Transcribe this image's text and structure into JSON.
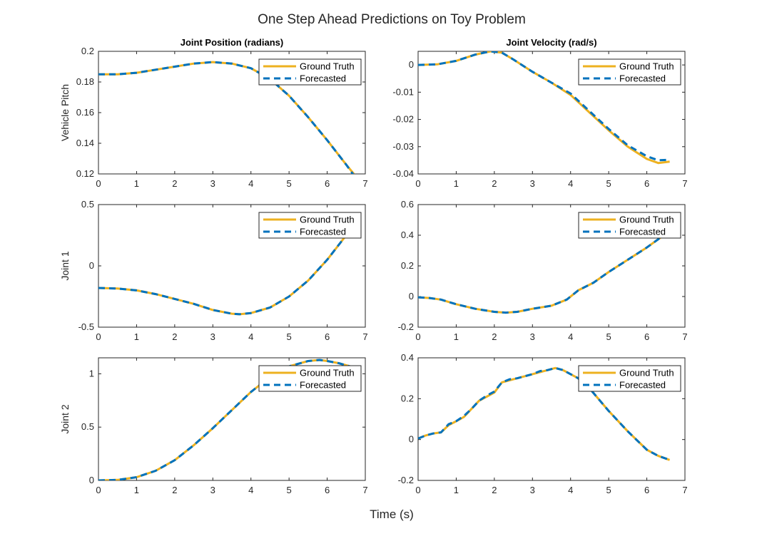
{
  "figure": {
    "title": "One Step Ahead Predictions on Toy Problem",
    "xlabel": "Time (s)"
  },
  "colors": {
    "ground_truth": "#EDB120",
    "forecasted": "#0072BD",
    "axes": "#262626",
    "background": "#FFFFFF"
  },
  "legend": {
    "placement": "top-right",
    "entries": [
      "Ground Truth",
      "Forecasted"
    ]
  },
  "chart_data": [
    {
      "type": "line",
      "row": 0,
      "col": 0,
      "title": "Joint Position (radians)",
      "ylabel": "Vehicle Pitch",
      "xlabel": "",
      "xlim": [
        0,
        7
      ],
      "ylim": [
        0.12,
        0.2
      ],
      "xticks": [
        0,
        1,
        2,
        3,
        4,
        5,
        6,
        7
      ],
      "yticks": [
        0.12,
        0.14,
        0.16,
        0.18,
        0.2
      ],
      "ytick_labels": [
        "0.12",
        "0.14",
        "0.16",
        "0.18",
        "0.2"
      ],
      "series": [
        {
          "name": "Ground Truth",
          "x": [
            0,
            0.5,
            1,
            1.5,
            2,
            2.5,
            3,
            3.5,
            4,
            4.5,
            5,
            5.5,
            6,
            6.5,
            6.7
          ],
          "y": [
            0.185,
            0.185,
            0.186,
            0.188,
            0.19,
            0.192,
            0.193,
            0.192,
            0.189,
            0.182,
            0.171,
            0.157,
            0.142,
            0.126,
            0.12
          ]
        },
        {
          "name": "Forecasted",
          "x": [
            0,
            0.5,
            1,
            1.5,
            2,
            2.5,
            3,
            3.5,
            4,
            4.5,
            5,
            5.5,
            6,
            6.5,
            6.7
          ],
          "y": [
            0.185,
            0.185,
            0.186,
            0.188,
            0.19,
            0.192,
            0.193,
            0.192,
            0.189,
            0.182,
            0.171,
            0.157,
            0.142,
            0.126,
            0.119
          ]
        }
      ]
    },
    {
      "type": "line",
      "row": 0,
      "col": 1,
      "title": "Joint Velocity (rad/s)",
      "ylabel": "",
      "xlabel": "",
      "xlim": [
        0,
        7
      ],
      "ylim": [
        -0.04,
        0.005
      ],
      "xticks": [
        0,
        1,
        2,
        3,
        4,
        5,
        6,
        7
      ],
      "yticks": [
        -0.04,
        -0.03,
        -0.02,
        -0.01,
        0
      ],
      "ytick_labels": [
        "-0.04",
        "-0.03",
        "-0.02",
        "-0.01",
        "0"
      ],
      "series": [
        {
          "name": "Ground Truth",
          "x": [
            0,
            0.5,
            1,
            1.5,
            1.9,
            2.2,
            2.5,
            3,
            3.5,
            4,
            4.5,
            5,
            5.5,
            6,
            6.3,
            6.6
          ],
          "y": [
            0,
            0.0002,
            0.0015,
            0.0038,
            0.005,
            0.0045,
            0.002,
            -0.0025,
            -0.0065,
            -0.011,
            -0.0175,
            -0.024,
            -0.03,
            -0.0345,
            -0.036,
            -0.0355
          ]
        },
        {
          "name": "Forecasted",
          "x": [
            0,
            0.5,
            1,
            1.5,
            1.9,
            2.2,
            2.5,
            3,
            3.5,
            4,
            4.5,
            5,
            5.5,
            6,
            6.3,
            6.6
          ],
          "y": [
            0,
            0.0002,
            0.0015,
            0.0038,
            0.005,
            0.0045,
            0.002,
            -0.0025,
            -0.0065,
            -0.0105,
            -0.017,
            -0.0235,
            -0.0295,
            -0.0335,
            -0.035,
            -0.0348
          ]
        }
      ]
    },
    {
      "type": "line",
      "row": 1,
      "col": 0,
      "title": "",
      "ylabel": "Joint 1",
      "xlabel": "",
      "xlim": [
        0,
        7
      ],
      "ylim": [
        -0.5,
        0.5
      ],
      "xticks": [
        0,
        1,
        2,
        3,
        4,
        5,
        6,
        7
      ],
      "yticks": [
        -0.5,
        0,
        0.5
      ],
      "ytick_labels": [
        "-0.5",
        "0",
        "0.5"
      ],
      "series": [
        {
          "name": "Ground Truth",
          "x": [
            0,
            0.5,
            1,
            1.5,
            2,
            2.5,
            3,
            3.5,
            3.7,
            4,
            4.5,
            5,
            5.5,
            6,
            6.5,
            6.7
          ],
          "y": [
            -0.18,
            -0.185,
            -0.2,
            -0.23,
            -0.27,
            -0.31,
            -0.36,
            -0.39,
            -0.395,
            -0.385,
            -0.34,
            -0.25,
            -0.12,
            0.05,
            0.25,
            0.32
          ]
        },
        {
          "name": "Forecasted",
          "x": [
            0,
            0.5,
            1,
            1.5,
            2,
            2.5,
            3,
            3.5,
            3.7,
            4,
            4.5,
            5,
            5.5,
            6,
            6.5,
            6.7
          ],
          "y": [
            -0.18,
            -0.185,
            -0.2,
            -0.23,
            -0.27,
            -0.31,
            -0.36,
            -0.39,
            -0.395,
            -0.385,
            -0.34,
            -0.25,
            -0.12,
            0.05,
            0.25,
            0.32
          ]
        }
      ]
    },
    {
      "type": "line",
      "row": 1,
      "col": 1,
      "title": "",
      "ylabel": "",
      "xlabel": "",
      "xlim": [
        0,
        7
      ],
      "ylim": [
        -0.2,
        0.6
      ],
      "xticks": [
        0,
        1,
        2,
        3,
        4,
        5,
        6,
        7
      ],
      "yticks": [
        -0.2,
        0,
        0.2,
        0.4,
        0.6
      ],
      "ytick_labels": [
        "-0.2",
        "0",
        "0.2",
        "0.4",
        "0.6"
      ],
      "series": [
        {
          "name": "Ground Truth",
          "x": [
            0,
            0.3,
            0.6,
            1,
            1.5,
            2,
            2.3,
            2.6,
            3,
            3.5,
            3.9,
            4.2,
            4.6,
            5,
            5.5,
            6,
            6.5,
            6.7
          ],
          "y": [
            -0.005,
            -0.01,
            -0.02,
            -0.05,
            -0.08,
            -0.1,
            -0.105,
            -0.1,
            -0.08,
            -0.06,
            -0.02,
            0.04,
            0.09,
            0.16,
            0.24,
            0.32,
            0.41,
            0.45
          ]
        },
        {
          "name": "Forecasted",
          "x": [
            0,
            0.3,
            0.6,
            1,
            1.5,
            2,
            2.3,
            2.6,
            3,
            3.5,
            3.9,
            4.2,
            4.6,
            5,
            5.5,
            6,
            6.5,
            6.7
          ],
          "y": [
            -0.005,
            -0.01,
            -0.02,
            -0.05,
            -0.08,
            -0.1,
            -0.105,
            -0.1,
            -0.08,
            -0.06,
            -0.02,
            0.04,
            0.09,
            0.16,
            0.24,
            0.32,
            0.41,
            0.45
          ]
        }
      ]
    },
    {
      "type": "line",
      "row": 2,
      "col": 0,
      "title": "",
      "ylabel": "Joint 2",
      "xlabel": "",
      "xlim": [
        0,
        7
      ],
      "ylim": [
        0,
        1.15
      ],
      "xticks": [
        0,
        1,
        2,
        3,
        4,
        5,
        6,
        7
      ],
      "yticks": [
        0,
        0.5,
        1
      ],
      "ytick_labels": [
        "0",
        "0.5",
        "1"
      ],
      "series": [
        {
          "name": "Ground Truth",
          "x": [
            0,
            0.5,
            1,
            1.5,
            2,
            2.5,
            3,
            3.5,
            4,
            4.5,
            5,
            5.5,
            5.8,
            6,
            6.3,
            6.6
          ],
          "y": [
            0,
            0.005,
            0.03,
            0.09,
            0.19,
            0.33,
            0.49,
            0.66,
            0.83,
            0.97,
            1.07,
            1.12,
            1.13,
            1.12,
            1.1,
            1.07
          ]
        },
        {
          "name": "Forecasted",
          "x": [
            0,
            0.5,
            1,
            1.5,
            2,
            2.5,
            3,
            3.5,
            4,
            4.5,
            5,
            5.5,
            5.8,
            6,
            6.3,
            6.6
          ],
          "y": [
            0,
            0.005,
            0.03,
            0.09,
            0.19,
            0.33,
            0.49,
            0.66,
            0.83,
            0.97,
            1.07,
            1.12,
            1.13,
            1.12,
            1.1,
            1.07
          ]
        }
      ]
    },
    {
      "type": "line",
      "row": 2,
      "col": 1,
      "title": "",
      "ylabel": "",
      "xlabel": "",
      "xlim": [
        0,
        7
      ],
      "ylim": [
        -0.2,
        0.4
      ],
      "xticks": [
        0,
        1,
        2,
        3,
        4,
        5,
        6,
        7
      ],
      "yticks": [
        -0.2,
        0,
        0.2,
        0.4
      ],
      "ytick_labels": [
        "-0.2",
        "0",
        "0.2",
        "0.4"
      ],
      "series": [
        {
          "name": "Ground Truth",
          "x": [
            0,
            0.2,
            0.4,
            0.6,
            0.8,
            1,
            1.2,
            1.4,
            1.6,
            1.8,
            2,
            2.2,
            2.4,
            2.6,
            2.8,
            3,
            3.2,
            3.4,
            3.6,
            3.8,
            4,
            4.2,
            4.5,
            5,
            5.5,
            6,
            6.3,
            6.6
          ],
          "y": [
            0.005,
            0.02,
            0.03,
            0.035,
            0.07,
            0.09,
            0.11,
            0.15,
            0.19,
            0.21,
            0.23,
            0.28,
            0.29,
            0.3,
            0.31,
            0.32,
            0.33,
            0.34,
            0.35,
            0.34,
            0.32,
            0.3,
            0.25,
            0.14,
            0.04,
            -0.05,
            -0.08,
            -0.1
          ]
        },
        {
          "name": "Forecasted",
          "x": [
            0,
            0.2,
            0.4,
            0.6,
            0.8,
            1,
            1.2,
            1.4,
            1.6,
            1.8,
            2,
            2.2,
            2.4,
            2.6,
            2.8,
            3,
            3.2,
            3.4,
            3.6,
            3.8,
            4,
            4.2,
            4.5,
            5,
            5.5,
            6,
            6.3,
            6.6
          ],
          "y": [
            0.005,
            0.02,
            0.03,
            0.035,
            0.075,
            0.09,
            0.115,
            0.15,
            0.19,
            0.215,
            0.235,
            0.28,
            0.295,
            0.3,
            0.31,
            0.32,
            0.335,
            0.34,
            0.35,
            0.34,
            0.32,
            0.3,
            0.25,
            0.14,
            0.04,
            -0.05,
            -0.08,
            -0.1
          ]
        }
      ]
    }
  ]
}
